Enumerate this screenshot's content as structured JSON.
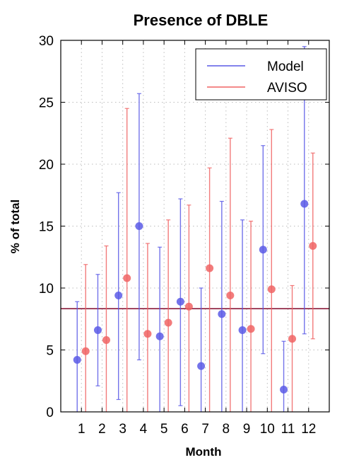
{
  "chart_data": {
    "type": "scatter",
    "title": "Presence of DBLE",
    "xlabel": "Month",
    "ylabel": "% of total",
    "categories": [
      "1",
      "2",
      "3",
      "4",
      "5",
      "6",
      "7",
      "8",
      "9",
      "10",
      "11",
      "12"
    ],
    "x": [
      1,
      2,
      3,
      4,
      5,
      6,
      7,
      8,
      9,
      10,
      11,
      12
    ],
    "xlim": [
      0,
      13
    ],
    "ylim": [
      0,
      30
    ],
    "yticks": [
      "0",
      "5",
      "10",
      "15",
      "20",
      "25",
      "30"
    ],
    "ytick_values": [
      0,
      5,
      10,
      15,
      20,
      25,
      30
    ],
    "grid": true,
    "legend_position": "top-right",
    "mean_line": {
      "value": 8.33,
      "color": "#8b1a3a"
    },
    "series": [
      {
        "name": "Model",
        "color": "#5a5ae6",
        "values": [
          4.2,
          6.6,
          9.4,
          15.0,
          6.1,
          8.9,
          3.7,
          7.9,
          6.6,
          13.1,
          1.8,
          16.8
        ],
        "lower": [
          0.0,
          2.1,
          1.0,
          4.2,
          0.0,
          0.5,
          0.0,
          0.0,
          0.0,
          4.7,
          0.0,
          6.3
        ],
        "upper": [
          8.9,
          11.1,
          17.7,
          25.7,
          13.3,
          17.2,
          10.0,
          17.0,
          15.5,
          21.5,
          5.7,
          29.5
        ]
      },
      {
        "name": "AVISO",
        "color": "#f06464",
        "values": [
          4.9,
          5.8,
          10.8,
          6.3,
          7.2,
          8.5,
          11.6,
          9.4,
          6.7,
          9.9,
          5.9,
          13.4
        ],
        "lower": [
          0.0,
          0.0,
          0.0,
          0.0,
          0.0,
          0.0,
          0.0,
          0.0,
          0.0,
          0.0,
          0.0,
          5.9
        ],
        "upper": [
          11.9,
          13.4,
          24.5,
          13.6,
          15.5,
          16.7,
          19.7,
          22.1,
          15.4,
          22.8,
          10.2,
          20.9
        ]
      }
    ]
  }
}
